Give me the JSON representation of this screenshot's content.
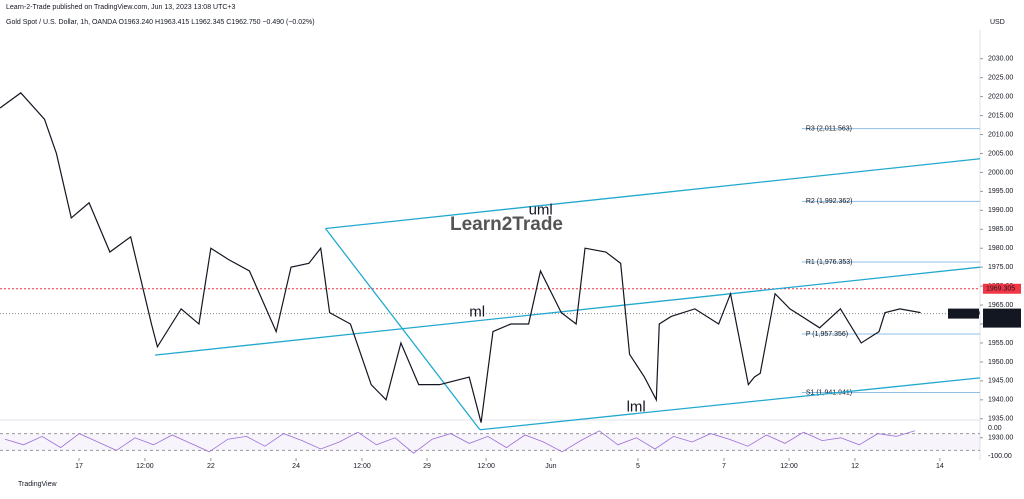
{
  "header": {
    "published": "Learn-2-Trade published on TradingView.com, Jun 13, 2023 13:08 UTC+3",
    "symbol": "Gold Spot / U.S. Dollar, 1h, OANDA  O1963.240 H1963.415 L1962.345 C1962.750 −0.490 (−0.02%)",
    "currency": "USD",
    "watermark": "Learn2Trade",
    "footer": "TradingView"
  },
  "chart_data": [
    {
      "type": "line",
      "name": "XAUUSD",
      "color": "#131722",
      "x": [
        0,
        7,
        15,
        19,
        24,
        30,
        37,
        44,
        51,
        53,
        61,
        67,
        71,
        77,
        84,
        93,
        98,
        104,
        108,
        111,
        118,
        125,
        130,
        135,
        141,
        148,
        158,
        162,
        166,
        172,
        178,
        182,
        189,
        194,
        197,
        204,
        209,
        212,
        217,
        221,
        222,
        226,
        234,
        242,
        246,
        252,
        254,
        256,
        261,
        266,
        268,
        276,
        283,
        290,
        296,
        298,
        303,
        310
      ],
      "values": [
        2017,
        2021,
        2014,
        2005,
        1988,
        1992,
        1979,
        1983,
        1960,
        1954,
        1964,
        1960,
        1980,
        1977,
        1974,
        1958,
        1975,
        1976,
        1980,
        1963,
        1960,
        1944,
        1940,
        1955,
        1944,
        1944,
        1946,
        1934,
        1958,
        1960,
        1960,
        1974,
        1963,
        1960,
        1980,
        1979,
        1976,
        1952,
        1946,
        1940,
        1960,
        1962,
        1964,
        1960,
        1968,
        1944,
        1946,
        1947,
        1968,
        1964,
        1963,
        1959,
        1964,
        1955,
        1958,
        1963,
        1964,
        1963
      ],
      "xlim": [
        0,
        330
      ],
      "ylim": [
        1928,
        2038
      ],
      "xticks": [
        {
          "value": 26.6,
          "label": "17"
        },
        {
          "value": 48.8,
          "label": "12:00"
        },
        {
          "value": 71,
          "label": "22"
        },
        {
          "value": 99.7,
          "label": "24"
        },
        {
          "value": 121.9,
          "label": "12:00"
        },
        {
          "value": 143.8,
          "label": "29"
        },
        {
          "value": 163.7,
          "label": "12:00"
        },
        {
          "value": 185.5,
          "label": "Jun"
        },
        {
          "value": 214.8,
          "label": "5"
        },
        {
          "value": 243.8,
          "label": "7"
        },
        {
          "value": 265.7,
          "label": "12:00"
        },
        {
          "value": 287.9,
          "label": "12"
        },
        {
          "value": 316.5,
          "label": "14"
        }
      ],
      "yticks": [
        {
          "value": 1930,
          "label": "1930.00"
        },
        {
          "value": 1935,
          "label": "1935.00"
        },
        {
          "value": 1940,
          "label": "1940.00"
        },
        {
          "value": 1945,
          "label": "1945.00"
        },
        {
          "value": 1950,
          "label": "1950.00"
        },
        {
          "value": 1955,
          "label": "1955.00"
        },
        {
          "value": 1960,
          "label": "1960.00"
        },
        {
          "value": 1965,
          "label": "1965.00"
        },
        {
          "value": 1970,
          "label": "1970.00"
        },
        {
          "value": 1975,
          "label": "1975.00"
        },
        {
          "value": 1980,
          "label": "1980.00"
        },
        {
          "value": 1985,
          "label": "1985.00"
        },
        {
          "value": 1990,
          "label": "1990.00"
        },
        {
          "value": 1995,
          "label": "1995.00"
        },
        {
          "value": 2000,
          "label": "2000.00"
        },
        {
          "value": 2005,
          "label": "2005.00"
        },
        {
          "value": 2010,
          "label": "2010.00"
        },
        {
          "value": 2015,
          "label": "2015.00"
        },
        {
          "value": 2020,
          "label": "2020.00"
        },
        {
          "value": 2025,
          "label": "2025.00"
        },
        {
          "value": 2030,
          "label": "2030.00"
        }
      ],
      "trendlines": [
        {
          "label": "uml",
          "x": [
            109.6,
            330
          ],
          "values": [
            1985.2,
            2003.6
          ],
          "label_at": [
            178,
            1990
          ]
        },
        {
          "label": "ml",
          "x": [
            52.2,
            330
          ],
          "values": [
            1951.8,
            1975.0
          ],
          "label_at": [
            158,
            1963
          ]
        },
        {
          "label": "lml",
          "x": [
            161.6,
            330
          ],
          "values": [
            1932.1,
            1945.8
          ],
          "label_at": [
            211,
            1938
          ]
        },
        {
          "x": [
            109.6,
            161.6
          ],
          "values": [
            1985.2,
            1932.1
          ]
        }
      ],
      "trend_color": "#22a9cf",
      "pivots": [
        {
          "label": "R3 (2,011.563)",
          "value": 2011.563
        },
        {
          "label": "R2 (1,992.362)",
          "value": 1992.362
        },
        {
          "label": "R1 (1,976.353)",
          "value": 1976.353
        },
        {
          "label": "P (1,957.356)",
          "value": 1957.356
        },
        {
          "label": "S1 (1,941.941)",
          "value": 1941.941
        }
      ],
      "pivot_start": 270,
      "pivot_color": "#8fbfe6",
      "alert": {
        "value": 1969.305,
        "label": "1969.305",
        "color": "#f23645"
      },
      "last": {
        "value": 1962.75,
        "label": "1962.750",
        "symbol": "XAUUSD",
        "countdown": "51:07"
      }
    },
    {
      "type": "line",
      "name": "oscillator",
      "color": "#9c6fd6",
      "values": [
        -40,
        -60,
        -30,
        -70,
        -20,
        -50,
        -80,
        -35,
        -60,
        -25,
        -55,
        -85,
        -40,
        -30,
        -65,
        -20,
        -45,
        -75,
        -50,
        -15,
        -60,
        -35,
        -90,
        -40,
        -20,
        -55,
        -30,
        -70,
        -25,
        -50,
        -85,
        -45,
        -10,
        -60,
        -35,
        -75,
        -30,
        -50,
        -20,
        -40,
        -65,
        -25,
        -55,
        -15,
        -45,
        -35,
        -60,
        -20,
        -30,
        -10
      ],
      "ylim": [
        -100,
        0
      ],
      "yticks": [
        {
          "value": 0,
          "label": "0.00"
        },
        {
          "value": -100,
          "label": "-100.00"
        }
      ],
      "bands": [
        -20,
        -80
      ]
    }
  ]
}
